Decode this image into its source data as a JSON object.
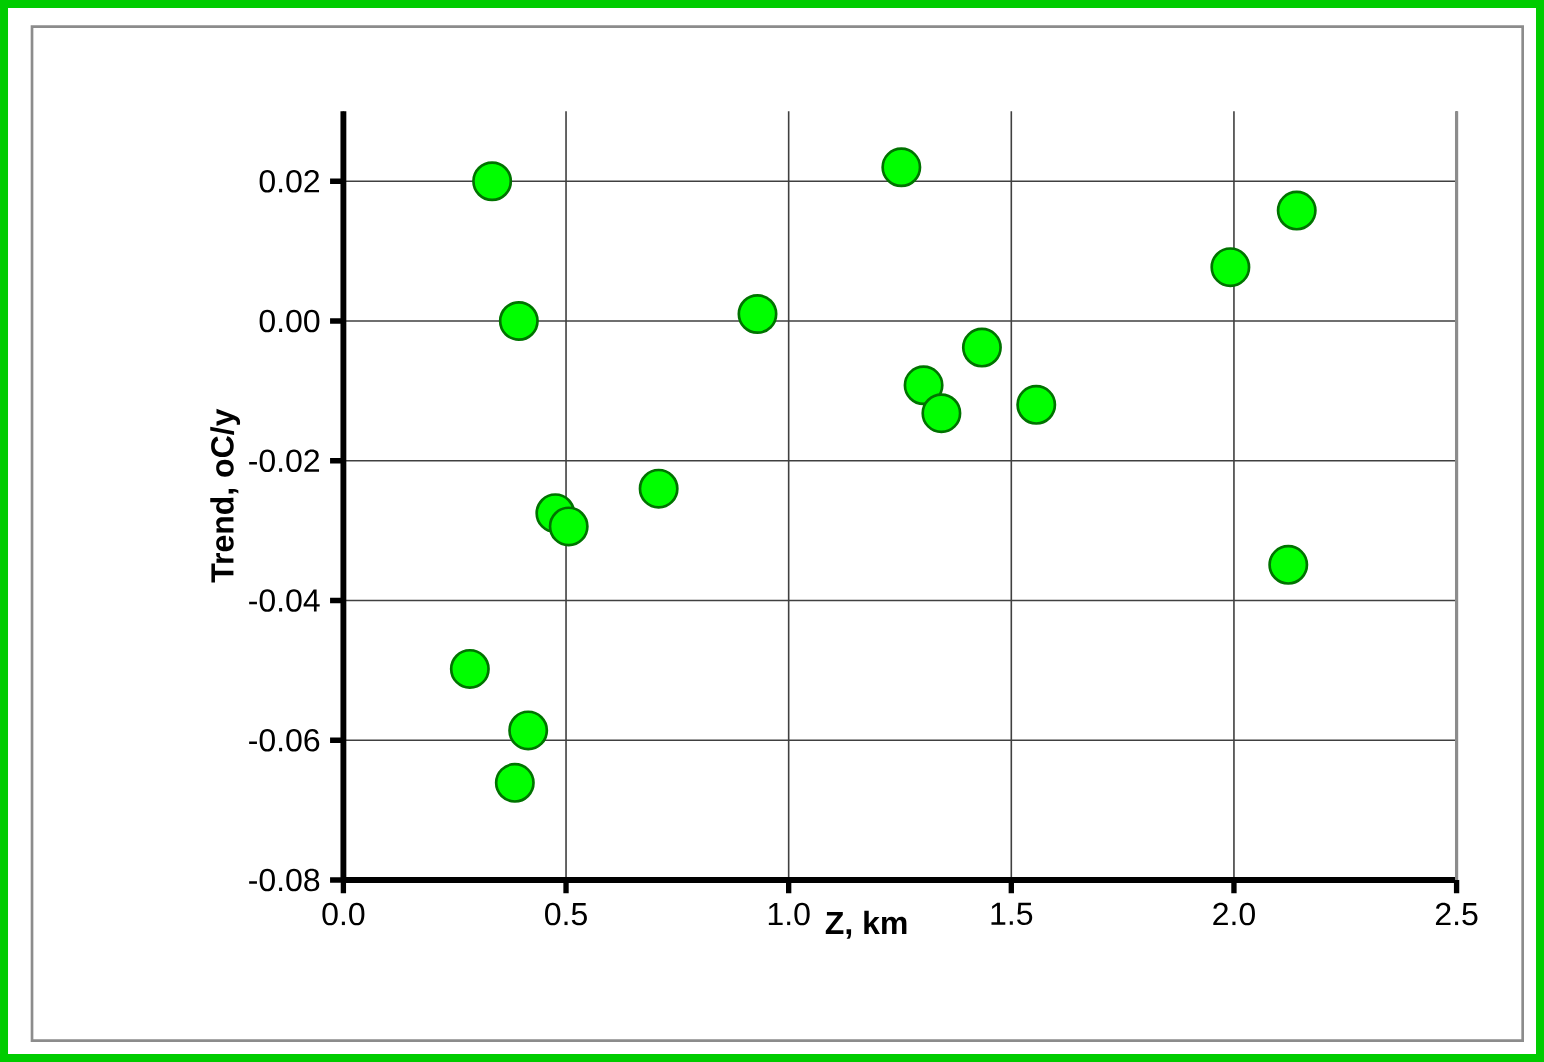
{
  "chart_data": {
    "type": "scatter",
    "xlabel": "Z, km",
    "ylabel": "Trend, oC/y",
    "x": [
      0.334,
      0.394,
      0.93,
      1.253,
      0.708,
      0.476,
      0.506,
      0.284,
      0.415,
      0.385,
      1.303,
      1.343,
      1.434,
      1.556,
      1.992,
      2.141,
      2.122
    ],
    "values": [
      0.02,
      0.0,
      0.001,
      0.022,
      -0.024,
      -0.0275,
      -0.0294,
      -0.0498,
      -0.0586,
      -0.0661,
      -0.0092,
      -0.0132,
      -0.0038,
      -0.012,
      0.0077,
      0.0158,
      -0.0349
    ],
    "color": "#00ff00",
    "marker": "circle",
    "grid": true,
    "xlim": [
      0,
      2.5
    ],
    "xticks": [
      {
        "value": 0,
        "label": "0.0"
      },
      0.5,
      {
        "value": 1,
        "label": "1.0"
      },
      1.5,
      {
        "value": 2,
        "label": "2.0"
      },
      2.5
    ],
    "ylim": [
      -0.08,
      0.03
    ],
    "yticks": [
      -0.08,
      -0.06,
      -0.04,
      -0.02,
      {
        "value": 0,
        "label": "0.00"
      },
      0.02
    ]
  }
}
